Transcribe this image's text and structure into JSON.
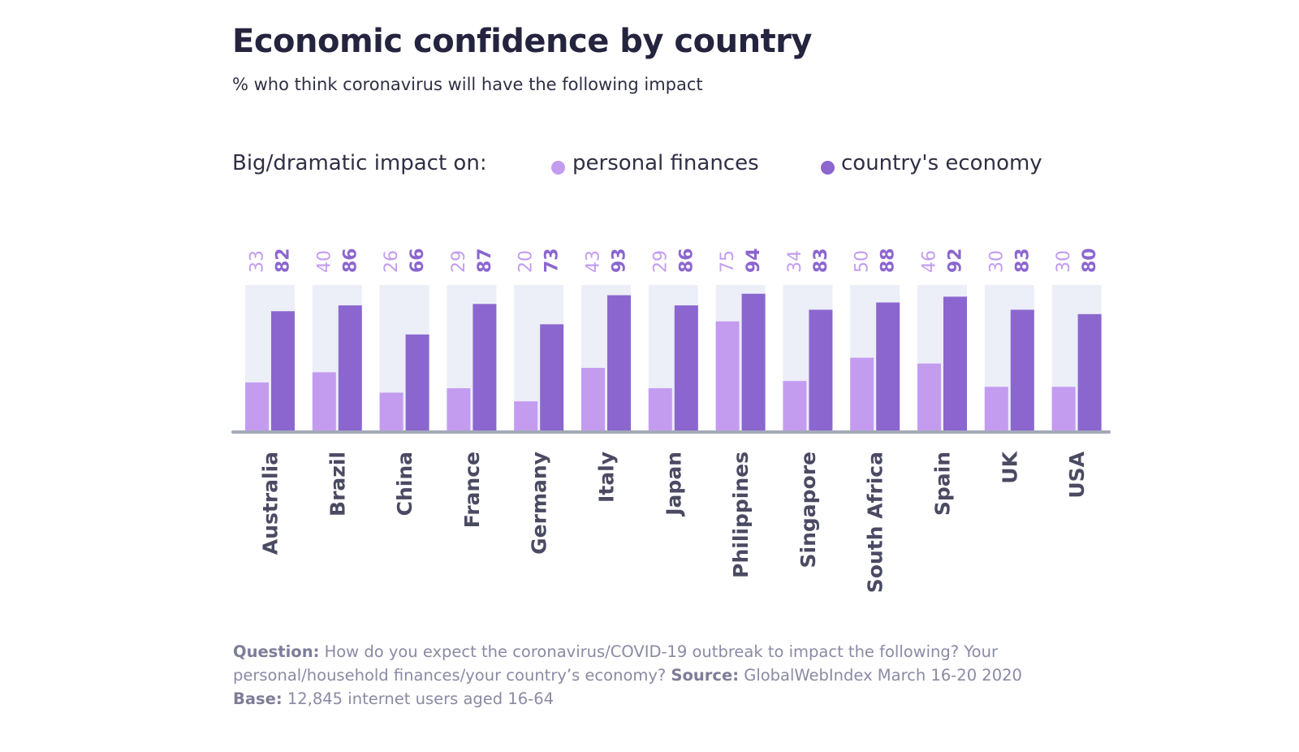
{
  "chart_data": {
    "type": "bar",
    "title": "Economic confidence by country",
    "subtitle": "% who think coronavirus will have the following impact",
    "legend_label": "Big/dramatic impact on:",
    "categories": [
      "Australia",
      "Brazil",
      "China",
      "France",
      "Germany",
      "Italy",
      "Japan",
      "Philippines",
      "Singapore",
      "South Africa",
      "Spain",
      "UK",
      "USA"
    ],
    "series": [
      {
        "name": "personal finances",
        "color": "#c39cf0",
        "values": [
          33,
          40,
          26,
          29,
          20,
          43,
          29,
          75,
          34,
          50,
          46,
          30,
          30
        ]
      },
      {
        "name": "country's economy",
        "color": "#8b66cf",
        "values": [
          82,
          86,
          66,
          87,
          73,
          93,
          86,
          94,
          83,
          88,
          92,
          83,
          80
        ]
      }
    ],
    "ylim": [
      0,
      100
    ],
    "background_bar_color": "#eceef8",
    "axis_color": "#a4a9b8",
    "legend_placement": "top"
  },
  "footer": {
    "question_label": "Question:",
    "question_text": "How do you expect the coronavirus/COVID-19 outbreak to impact the following? Your personal/household finances/your country’s economy?",
    "source_label": "Source:",
    "source_text": "GlobalWebIndex March 16-20 2020",
    "base_label": "Base:",
    "base_text": "12,845 internet users aged 16-64"
  }
}
